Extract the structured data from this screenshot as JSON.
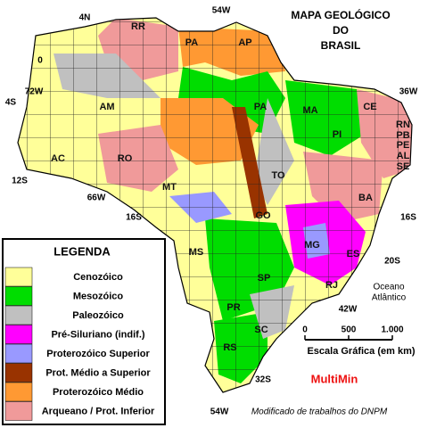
{
  "title": [
    "MAPA GEOLÓGICO",
    "DO",
    "BRASIL"
  ],
  "coordinates": [
    "4N",
    "54W",
    "0",
    "72W",
    "4S",
    "36W",
    "12S",
    "66W",
    "16S",
    "16S",
    "20S",
    "42W",
    "32S",
    "54W"
  ],
  "states": [
    "RR",
    "PA",
    "AP",
    "AM",
    "PA",
    "MA",
    "CE",
    "RN",
    "PB",
    "PE",
    "AL",
    "SE",
    "PI",
    "AC",
    "RO",
    "MT",
    "TO",
    "BA",
    "GO",
    "MG",
    "ES",
    "MS",
    "SP",
    "RJ",
    "PR",
    "SC",
    "RS"
  ],
  "legend": {
    "title": "LEGENDA",
    "items": [
      {
        "label": "Cenozóico",
        "color": "#ffff99"
      },
      {
        "label": "Mesozóico",
        "color": "#00dd00"
      },
      {
        "label": "Paleozóico",
        "color": "#c0c0c0"
      },
      {
        "label": "Pré-Siluriano (indif.)",
        "color": "#ff00ff"
      },
      {
        "label": "Proterozóico Superior",
        "color": "#9999ff"
      },
      {
        "label": "Prot. Médio a Superior",
        "color": "#993300"
      },
      {
        "label": "Proterozóico Médio",
        "color": "#ff9933"
      },
      {
        "label": "Arqueano / Prot. Inferior",
        "color": "#f09a9a"
      }
    ]
  },
  "ocean": [
    "Oceano",
    "Atlântico"
  ],
  "scale": {
    "ticks": [
      0,
      500,
      {
        "value": 1000,
        "label": "1.000"
      }
    ],
    "label": "Escala Gráfica (em km)"
  },
  "brand": "MultiMin",
  "credit": "Modificado de trabalhos do DNPM"
}
